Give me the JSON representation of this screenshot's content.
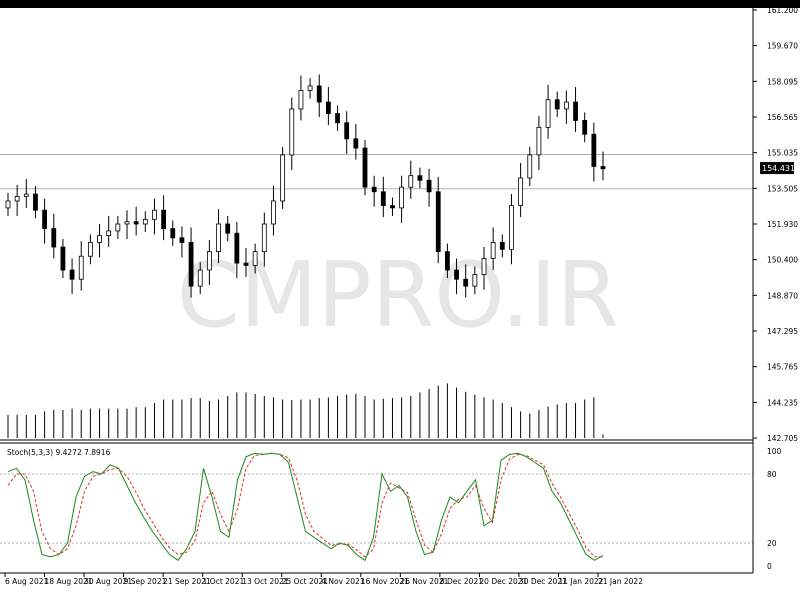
{
  "watermark": "CMPRO.IR",
  "colors": {
    "background": "#ffffff",
    "frame": "#000000",
    "candle_stroke": "#000000",
    "candle_bull_fill": "#ffffff",
    "candle_bear_fill": "#000000",
    "volume": "#000000",
    "stoch_main": "#1a8a1a",
    "stoch_signal": "#e0302a",
    "hline": "#b0b0b0",
    "watermark": "#e6e6e6"
  },
  "price_panel": {
    "current_price_label": "154.431",
    "hlines": [
      155.02,
      153.53
    ]
  },
  "stoch_panel": {
    "label": "Stoch(5,3,3) 9.4272 7.8916",
    "levels": [
      80,
      20
    ]
  },
  "chart_data": [
    {
      "type": "candlestick",
      "title": "",
      "ylim": [
        142.7,
        161.3
      ],
      "yticks": [
        "161.200",
        "159.670",
        "158.095",
        "156.565",
        "155.035",
        "153.505",
        "151.930",
        "150.400",
        "148.870",
        "147.295",
        "145.765",
        "144.235",
        "142.705"
      ],
      "xticks": [
        "6 Aug 2021",
        "18 Aug 2021",
        "30 Aug 2021",
        "9 Sep 2021",
        "21 Sep 2021",
        "1 Oct 2021",
        "13 Oct 2021",
        "25 Oct 2021",
        "4 Nov 2021",
        "16 Nov 2021",
        "26 Nov 2021",
        "8 Dec 2021",
        "20 Dec 2021",
        "30 Dec 2021",
        "11 Jan 2022",
        "21 Jan 2022"
      ],
      "anchor_closes": [
        153.0,
        153.2,
        153.3,
        152.6,
        151.8,
        151.0,
        150.0,
        149.6,
        150.6,
        151.2,
        151.5,
        151.7,
        152.0,
        152.1,
        152.0,
        152.2,
        152.6,
        151.8,
        151.4,
        151.2,
        149.3,
        150.0,
        150.8,
        152.0,
        151.6,
        150.3,
        150.2,
        150.8,
        152.0,
        153.0,
        155.0,
        157.0,
        157.8,
        158.0,
        157.3,
        156.8,
        156.4,
        155.7,
        155.3,
        153.6,
        153.4,
        152.8,
        152.7,
        153.6,
        154.1,
        153.9,
        153.4,
        150.8,
        150.0,
        149.6,
        149.3,
        149.8,
        150.5,
        151.2,
        150.9,
        152.8,
        154.0,
        155.0,
        156.2,
        157.4,
        157.0,
        157.3,
        156.5,
        155.9,
        154.5,
        154.4
      ],
      "note": "",
      "volume": {
        "ylim": [
          0,
          100
        ],
        "values": [
          33,
          33,
          33,
          33,
          38,
          40,
          40,
          42,
          40,
          42,
          42,
          42,
          42,
          42,
          44,
          44,
          50,
          55,
          55,
          55,
          57,
          57,
          53,
          55,
          60,
          65,
          65,
          63,
          60,
          58,
          55,
          54,
          55,
          55,
          57,
          58,
          60,
          62,
          63,
          60,
          55,
          56,
          57,
          58,
          60,
          65,
          70,
          75,
          78,
          72,
          66,
          62,
          58,
          55,
          50,
          44,
          38,
          35,
          40,
          45,
          48,
          50,
          50,
          55,
          58,
          5
        ]
      }
    },
    {
      "type": "line",
      "title": "Stoch(5,3,3)",
      "ylim": [
        0,
        100
      ],
      "yticks": [
        "100",
        "80",
        "20",
        "0"
      ],
      "series": [
        {
          "name": "",
          "values": [
            82,
            85,
            75,
            40,
            10,
            8,
            10,
            20,
            60,
            78,
            82,
            80,
            88,
            85,
            70,
            55,
            42,
            30,
            20,
            10,
            5,
            15,
            30,
            85,
            60,
            30,
            25,
            75,
            95,
            98,
            97,
            98,
            97,
            90,
            60,
            30,
            25,
            20,
            15,
            20,
            18,
            10,
            5,
            25,
            80,
            65,
            70,
            60,
            30,
            10,
            12,
            40,
            60,
            55,
            65,
            75,
            35,
            40,
            92,
            97,
            98,
            95,
            90,
            85,
            65,
            55,
            40,
            25,
            10,
            5,
            9
          ]
        },
        {
          "name": "",
          "values": [
            70,
            80,
            80,
            65,
            30,
            15,
            10,
            15,
            35,
            65,
            78,
            80,
            84,
            85,
            78,
            65,
            50,
            38,
            26,
            16,
            10,
            12,
            22,
            55,
            65,
            45,
            30,
            50,
            85,
            96,
            97,
            98,
            97,
            94,
            75,
            45,
            30,
            24,
            18,
            19,
            19,
            14,
            8,
            15,
            55,
            72,
            68,
            64,
            40,
            18,
            12,
            28,
            50,
            58,
            60,
            70,
            50,
            38,
            75,
            93,
            97,
            96,
            92,
            88,
            72,
            60,
            46,
            32,
            16,
            8,
            8
          ]
        }
      ]
    }
  ]
}
